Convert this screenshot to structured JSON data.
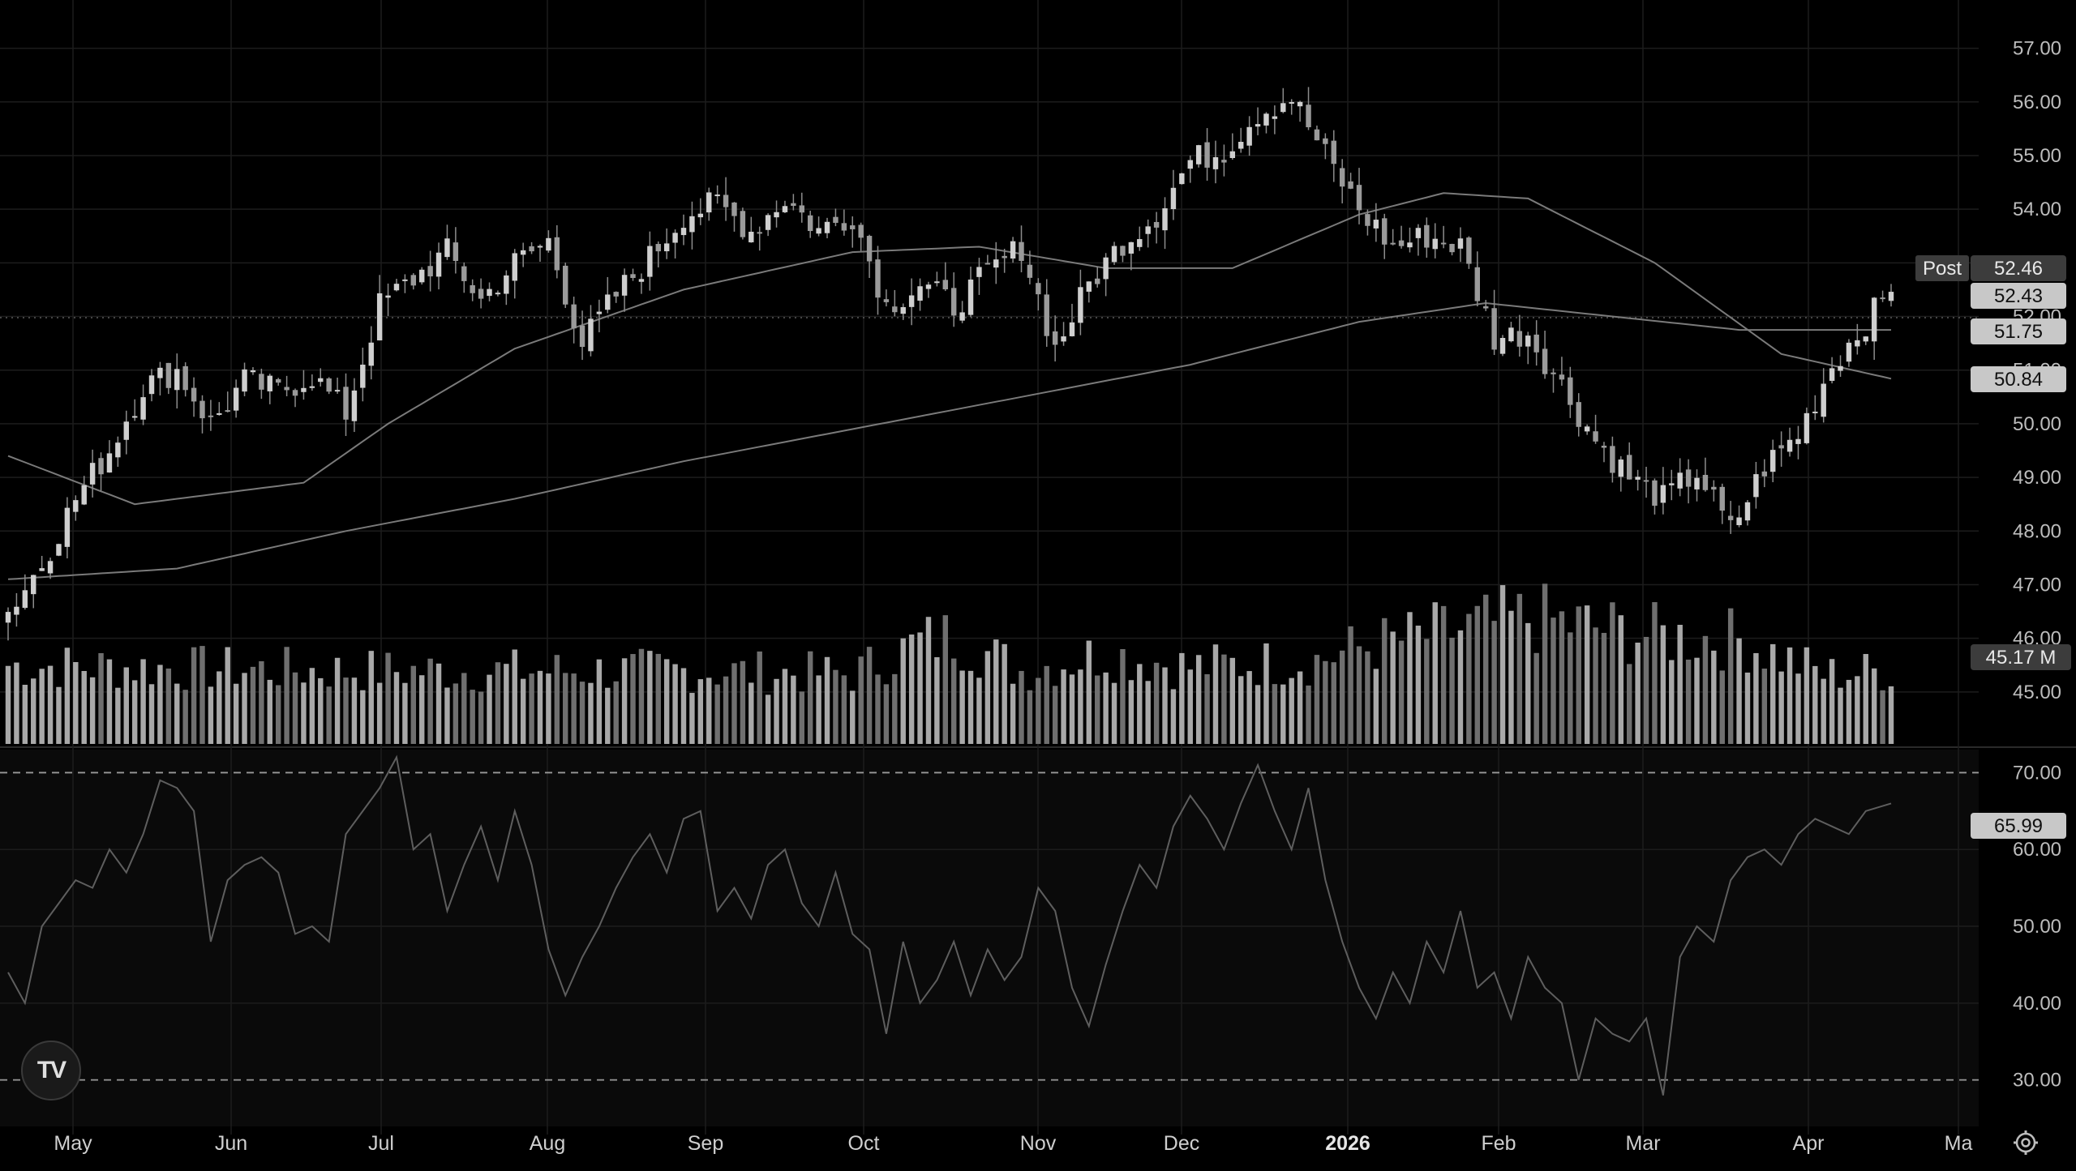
{
  "colors": {
    "background": "#000000",
    "pane_background": "#0a0a0a",
    "grid": "#1c1c1c",
    "candle": "#9a9a9a",
    "candle_wick": "#8c8c8c",
    "volume_up": "#a8a8a8",
    "volume_down": "#6f6f6f",
    "ma_line": "#7a7a7a",
    "rsi_line": "#5e5e5e",
    "tag_bg": "#3c3c3c",
    "tag_bg_light": "#c8c8c8"
  },
  "logo": {
    "text": "TV",
    "icon": "tradingview-logo-icon"
  },
  "settings": {
    "icon": "gear-icon"
  },
  "chart_data": [
    {
      "type": "candlestick",
      "title": "",
      "xlabel": "",
      "ylabel": "",
      "x_axis_labels": [
        "May",
        "Jun",
        "Jul",
        "Aug",
        "Sep",
        "Oct",
        "Nov",
        "Dec",
        "2026",
        "Feb",
        "Mar",
        "Apr",
        "Ma"
      ],
      "y_ticks": [
        "45.00",
        "46.00",
        "47.00",
        "48.00",
        "49.00",
        "50.00",
        "51.00",
        "52.00",
        "53.00",
        "54.00",
        "55.00",
        "56.00",
        "57.00"
      ],
      "ylim": [
        44.0,
        57.9
      ],
      "grid": true,
      "price_tags": [
        {
          "label": "Post",
          "value": "52.46"
        },
        {
          "value": "52.43"
        },
        {
          "value": "51.75"
        },
        {
          "value": "50.84"
        }
      ],
      "volume_tag": "45.17 M",
      "price_path": [
        [
          0,
          46.5
        ],
        [
          4,
          47.4
        ],
        [
          8,
          48.6
        ],
        [
          12,
          49.5
        ],
        [
          16,
          50.7
        ],
        [
          20,
          51.0
        ],
        [
          24,
          50.0
        ],
        [
          28,
          50.8
        ],
        [
          32,
          50.6
        ],
        [
          36,
          50.9
        ],
        [
          40,
          50.2
        ],
        [
          44,
          52.2
        ],
        [
          48,
          52.7
        ],
        [
          52,
          53.2
        ],
        [
          56,
          52.3
        ],
        [
          60,
          53.0
        ],
        [
          64,
          53.4
        ],
        [
          68,
          51.5
        ],
        [
          72,
          52.4
        ],
        [
          76,
          53.1
        ],
        [
          80,
          53.9
        ],
        [
          84,
          54.1
        ],
        [
          88,
          53.6
        ],
        [
          92,
          54.2
        ],
        [
          96,
          53.6
        ],
        [
          100,
          53.9
        ],
        [
          104,
          52.2
        ],
        [
          108,
          52.6
        ],
        [
          112,
          52.2
        ],
        [
          116,
          52.8
        ],
        [
          120,
          53.3
        ],
        [
          124,
          51.4
        ],
        [
          128,
          52.6
        ],
        [
          132,
          53.4
        ],
        [
          136,
          53.9
        ],
        [
          140,
          54.9
        ],
        [
          144,
          55.1
        ],
        [
          148,
          55.8
        ],
        [
          152,
          56.1
        ],
        [
          156,
          55.0
        ],
        [
          160,
          54.0
        ],
        [
          164,
          53.3
        ],
        [
          168,
          53.5
        ],
        [
          172,
          53.3
        ],
        [
          176,
          51.6
        ],
        [
          180,
          51.7
        ],
        [
          184,
          50.7
        ],
        [
          188,
          49.7
        ],
        [
          192,
          49.0
        ],
        [
          196,
          48.6
        ],
        [
          200,
          49.1
        ],
        [
          204,
          48.0
        ],
        [
          208,
          49.2
        ],
        [
          212,
          49.8
        ],
        [
          216,
          51.1
        ],
        [
          220,
          51.9
        ],
        [
          223,
          52.46
        ]
      ],
      "ma_long": [
        [
          0,
          47.1
        ],
        [
          20,
          47.3
        ],
        [
          40,
          48.0
        ],
        [
          60,
          48.6
        ],
        [
          80,
          49.3
        ],
        [
          100,
          49.9
        ],
        [
          120,
          50.5
        ],
        [
          140,
          51.1
        ],
        [
          160,
          51.9
        ],
        [
          175,
          52.25
        ],
        [
          190,
          52.0
        ],
        [
          205,
          51.75
        ],
        [
          223,
          51.75
        ]
      ],
      "ma_short": [
        [
          0,
          49.4
        ],
        [
          15,
          48.5
        ],
        [
          35,
          48.9
        ],
        [
          45,
          50.0
        ],
        [
          60,
          51.4
        ],
        [
          80,
          52.5
        ],
        [
          100,
          53.2
        ],
        [
          115,
          53.3
        ],
        [
          130,
          52.9
        ],
        [
          145,
          52.9
        ],
        [
          160,
          53.9
        ],
        [
          170,
          54.3
        ],
        [
          180,
          54.2
        ],
        [
          195,
          53.0
        ],
        [
          210,
          51.3
        ],
        [
          223,
          50.84
        ]
      ],
      "volume_scale": {
        "max": 100
      },
      "volume_profile": [
        [
          0,
          45
        ],
        [
          40,
          42
        ],
        [
          80,
          42
        ],
        [
          100,
          40
        ],
        [
          108,
          58
        ],
        [
          112,
          62
        ],
        [
          120,
          42
        ],
        [
          130,
          52
        ],
        [
          140,
          44
        ],
        [
          155,
          48
        ],
        [
          160,
          55
        ],
        [
          180,
          72
        ],
        [
          195,
          62
        ],
        [
          205,
          60
        ],
        [
          215,
          40
        ],
        [
          223,
          42
        ]
      ]
    },
    {
      "type": "line",
      "title": "",
      "xlabel": "",
      "ylabel": "",
      "y_ticks": [
        "30.00",
        "40.00",
        "50.00",
        "60.00",
        "70.00"
      ],
      "ylim": [
        25,
        73
      ],
      "bands": [
        30,
        70
      ],
      "current_value": "65.99",
      "rsi": [
        [
          0,
          44
        ],
        [
          2,
          40
        ],
        [
          4,
          50
        ],
        [
          6,
          53
        ],
        [
          8,
          56
        ],
        [
          10,
          55
        ],
        [
          12,
          60
        ],
        [
          14,
          57
        ],
        [
          16,
          62
        ],
        [
          18,
          69
        ],
        [
          20,
          68
        ],
        [
          22,
          65
        ],
        [
          24,
          48
        ],
        [
          26,
          56
        ],
        [
          28,
          58
        ],
        [
          30,
          59
        ],
        [
          32,
          57
        ],
        [
          34,
          49
        ],
        [
          36,
          50
        ],
        [
          38,
          48
        ],
        [
          40,
          62
        ],
        [
          44,
          68
        ],
        [
          46,
          72
        ],
        [
          48,
          60
        ],
        [
          50,
          62
        ],
        [
          52,
          52
        ],
        [
          54,
          58
        ],
        [
          56,
          63
        ],
        [
          58,
          56
        ],
        [
          60,
          65
        ],
        [
          62,
          58
        ],
        [
          64,
          47
        ],
        [
          66,
          41
        ],
        [
          68,
          46
        ],
        [
          70,
          50
        ],
        [
          72,
          55
        ],
        [
          74,
          59
        ],
        [
          76,
          62
        ],
        [
          78,
          57
        ],
        [
          80,
          64
        ],
        [
          82,
          65
        ],
        [
          84,
          52
        ],
        [
          86,
          55
        ],
        [
          88,
          51
        ],
        [
          90,
          58
        ],
        [
          92,
          60
        ],
        [
          94,
          53
        ],
        [
          96,
          50
        ],
        [
          98,
          57
        ],
        [
          100,
          49
        ],
        [
          102,
          47
        ],
        [
          104,
          36
        ],
        [
          106,
          48
        ],
        [
          108,
          40
        ],
        [
          110,
          43
        ],
        [
          112,
          48
        ],
        [
          114,
          41
        ],
        [
          116,
          47
        ],
        [
          118,
          43
        ],
        [
          120,
          46
        ],
        [
          122,
          55
        ],
        [
          124,
          52
        ],
        [
          126,
          42
        ],
        [
          128,
          37
        ],
        [
          130,
          45
        ],
        [
          132,
          52
        ],
        [
          134,
          58
        ],
        [
          136,
          55
        ],
        [
          138,
          63
        ],
        [
          140,
          67
        ],
        [
          142,
          64
        ],
        [
          144,
          60
        ],
        [
          146,
          66
        ],
        [
          148,
          71
        ],
        [
          150,
          65
        ],
        [
          152,
          60
        ],
        [
          154,
          68
        ],
        [
          156,
          56
        ],
        [
          158,
          48
        ],
        [
          160,
          42
        ],
        [
          162,
          38
        ],
        [
          164,
          44
        ],
        [
          166,
          40
        ],
        [
          168,
          48
        ],
        [
          170,
          44
        ],
        [
          172,
          52
        ],
        [
          174,
          42
        ],
        [
          176,
          44
        ],
        [
          178,
          38
        ],
        [
          180,
          46
        ],
        [
          182,
          42
        ],
        [
          184,
          40
        ],
        [
          186,
          30
        ],
        [
          188,
          38
        ],
        [
          190,
          36
        ],
        [
          192,
          35
        ],
        [
          194,
          38
        ],
        [
          196,
          28
        ],
        [
          198,
          46
        ],
        [
          200,
          50
        ],
        [
          202,
          48
        ],
        [
          204,
          56
        ],
        [
          206,
          59
        ],
        [
          208,
          60
        ],
        [
          210,
          58
        ],
        [
          212,
          62
        ],
        [
          214,
          64
        ],
        [
          216,
          63
        ],
        [
          218,
          62
        ],
        [
          220,
          65
        ],
        [
          223,
          65.99
        ]
      ]
    }
  ]
}
